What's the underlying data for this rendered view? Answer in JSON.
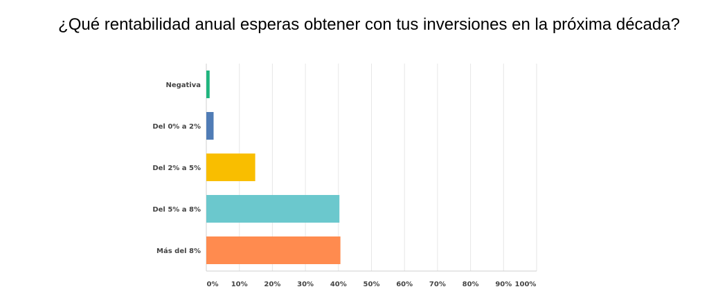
{
  "chart_data": {
    "type": "bar",
    "orientation": "horizontal",
    "title": "¿Qué rentabilidad anual esperas obtener con tus inversiones en la próxima década?",
    "categories": [
      "Negativa",
      "Del 0% a 2%",
      "Del 2% a 5%",
      "Del 5% a 8%",
      "Más del 8%"
    ],
    "values": [
      1.0,
      2.2,
      14.8,
      40.3,
      40.6
    ],
    "colors": [
      "#1fb57e",
      "#507cb6",
      "#f9be00",
      "#6bc8cd",
      "#ff8b4f"
    ],
    "xlabel": "",
    "ylabel": "",
    "xlim": [
      0,
      100
    ],
    "xticks": [
      "0%",
      "10%",
      "20%",
      "30%",
      "40%",
      "50%",
      "60%",
      "70%",
      "80%",
      "90%",
      "100%"
    ],
    "grid": true,
    "legend": "none"
  }
}
